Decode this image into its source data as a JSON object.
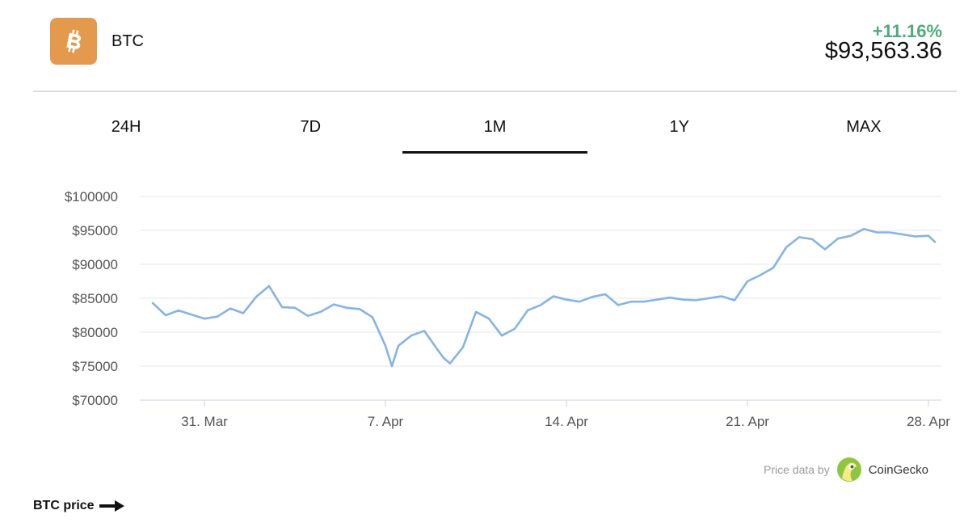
{
  "coin": {
    "symbol": "BTC",
    "change": "+11.16%",
    "price": "$93,563.36",
    "logo_icon": "bitcoin-icon",
    "logo_color": "#E49A4C",
    "change_color": "#4FAA7C"
  },
  "tabs": [
    {
      "label": "24H",
      "active": false
    },
    {
      "label": "7D",
      "active": false
    },
    {
      "label": "1M",
      "active": true
    },
    {
      "label": "1Y",
      "active": false
    },
    {
      "label": "MAX",
      "active": false
    }
  ],
  "attribution": {
    "prefix": "Price data by",
    "brand": "CoinGecko",
    "brand_icon": "coingecko-gecko-icon"
  },
  "footer": {
    "label": "BTC price",
    "icon": "arrow-right-icon"
  },
  "chart_data": {
    "type": "line",
    "title": "",
    "xlabel": "",
    "ylabel": "",
    "x_tick_labels": [
      "31. Mar",
      "7. Apr",
      "14. Apr",
      "21. Apr",
      "28. Apr"
    ],
    "y_tick_labels": [
      "$100000",
      "$95000",
      "$90000",
      "$85000",
      "$80000",
      "$75000",
      "$70000"
    ],
    "y_ticks": [
      100000,
      95000,
      90000,
      85000,
      80000,
      75000,
      70000
    ],
    "ylim": [
      70000,
      100000
    ],
    "xlim": [
      "2025-03-28T12:00",
      "2025-04-28T12:00"
    ],
    "grid": true,
    "legend": "none",
    "line_color": "#86B3E6",
    "series": [
      {
        "x": [
          "2025-03-29T00:00",
          "2025-03-29T12:00",
          "2025-03-30T00:00",
          "2025-03-30T12:00",
          "2025-03-31T00:00",
          "2025-03-31T12:00",
          "2025-04-01T00:00",
          "2025-04-01T12:00",
          "2025-04-02T00:00",
          "2025-04-02T12:00",
          "2025-04-03T00:00",
          "2025-04-03T12:00",
          "2025-04-04T00:00",
          "2025-04-04T12:00",
          "2025-04-05T00:00",
          "2025-04-05T12:00",
          "2025-04-06T00:00",
          "2025-04-06T12:00",
          "2025-04-07T00:00",
          "2025-04-07T06:00",
          "2025-04-07T12:00",
          "2025-04-08T00:00",
          "2025-04-08T12:00",
          "2025-04-09T00:00",
          "2025-04-09T06:00",
          "2025-04-09T12:00",
          "2025-04-10T00:00",
          "2025-04-10T12:00",
          "2025-04-11T00:00",
          "2025-04-11T12:00",
          "2025-04-12T00:00",
          "2025-04-12T12:00",
          "2025-04-13T00:00",
          "2025-04-13T12:00",
          "2025-04-14T00:00",
          "2025-04-14T12:00",
          "2025-04-15T00:00",
          "2025-04-15T12:00",
          "2025-04-16T00:00",
          "2025-04-16T12:00",
          "2025-04-17T00:00",
          "2025-04-17T12:00",
          "2025-04-18T00:00",
          "2025-04-18T12:00",
          "2025-04-19T00:00",
          "2025-04-19T12:00",
          "2025-04-20T00:00",
          "2025-04-20T12:00",
          "2025-04-21T00:00",
          "2025-04-21T12:00",
          "2025-04-22T00:00",
          "2025-04-22T12:00",
          "2025-04-23T00:00",
          "2025-04-23T12:00",
          "2025-04-24T00:00",
          "2025-04-24T12:00",
          "2025-04-25T00:00",
          "2025-04-25T12:00",
          "2025-04-26T00:00",
          "2025-04-26T12:00",
          "2025-04-27T00:00",
          "2025-04-27T12:00",
          "2025-04-28T00:00",
          "2025-04-28T06:00"
        ],
        "y": [
          84300,
          82500,
          83200,
          82600,
          82000,
          82300,
          83500,
          82800,
          85200,
          86800,
          83700,
          83600,
          82400,
          83000,
          84100,
          83600,
          83400,
          82200,
          78000,
          75000,
          78000,
          79500,
          80200,
          77500,
          76200,
          75400,
          77800,
          83000,
          82000,
          79500,
          80500,
          83200,
          84000,
          85300,
          84800,
          84500,
          85200,
          85600,
          84000,
          84500,
          84500,
          84800,
          85100,
          84800,
          84700,
          85000,
          85300,
          84700,
          87500,
          88400,
          89500,
          92500,
          94000,
          93700,
          92200,
          93800,
          94200,
          95200,
          94700,
          94700,
          94400,
          94100,
          94200,
          93300
        ]
      }
    ]
  }
}
